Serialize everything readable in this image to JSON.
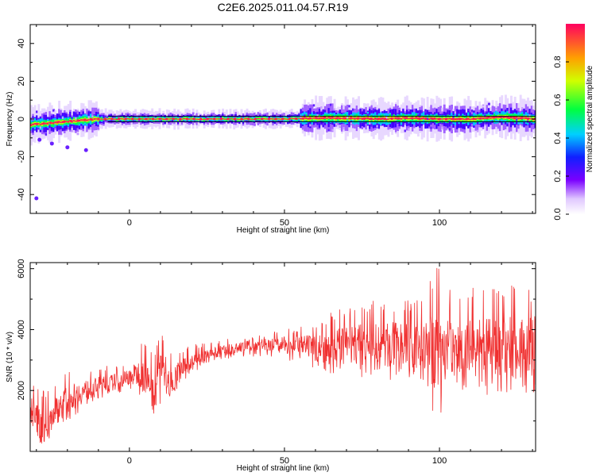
{
  "title": "C2E6.2025.011.04.57.R19",
  "colors": {
    "snr_line": "#f03030",
    "spectrum_dot": "#ff2050",
    "axis": "#000000"
  },
  "chart_data": [
    {
      "type": "heatmap",
      "xlabel": "Height of straight line (km)",
      "ylabel": "Frequency (Hz)",
      "xlim": [
        -32,
        131
      ],
      "ylim": [
        -50,
        50
      ],
      "xticks": [
        0,
        50,
        100
      ],
      "yticks": [
        -40,
        -20,
        0,
        20,
        40
      ],
      "grid": false,
      "colorbar": {
        "label": "Normalized spectral amplitude",
        "range": [
          0,
          1
        ],
        "ticks": [
          "0.0",
          "0.2",
          "0.4",
          "0.6",
          "0.8"
        ],
        "colormap": "rainbow"
      },
      "dominant_frequency": {
        "x": [
          -32,
          -25,
          -18,
          -10,
          0,
          10,
          20,
          30,
          40,
          50,
          60,
          70,
          80,
          90,
          100,
          110,
          120,
          131
        ],
        "y": [
          -3,
          -2,
          -1,
          0,
          0,
          0,
          0,
          0,
          0,
          0,
          0.5,
          0.5,
          0,
          0.5,
          0,
          0,
          1,
          0
        ]
      }
    },
    {
      "type": "line",
      "xlabel": "Height of straight line (km)",
      "ylabel": "SNR (10 * v/v)",
      "xlim": [
        -32,
        131
      ],
      "ylim": [
        0,
        6200
      ],
      "xticks": [
        0,
        50,
        100
      ],
      "yticks": [
        2000,
        4000,
        6000
      ],
      "grid": false,
      "series": [
        {
          "x": [
            -32,
            -28,
            -24,
            -20,
            -16,
            -12,
            -8,
            -4,
            0,
            4,
            8,
            10,
            12,
            16,
            20,
            25,
            30,
            35,
            40,
            45,
            50,
            55,
            60,
            65,
            70,
            75,
            80,
            85,
            90,
            95,
            98,
            100,
            102,
            105,
            110,
            115,
            120,
            125,
            131
          ],
          "values": [
            1400,
            700,
            1300,
            1700,
            1900,
            2100,
            2200,
            2300,
            2450,
            2600,
            1800,
            2900,
            2200,
            2600,
            2900,
            3100,
            3300,
            3400,
            3500,
            3500,
            3500,
            3450,
            3400,
            3400,
            3500,
            3500,
            3400,
            3500,
            3400,
            3400,
            3300,
            3600,
            3400,
            3300,
            3400,
            3400,
            3400,
            3400,
            3500
          ],
          "envelope_low": [
            400,
            200,
            600,
            1000,
            1300,
            1600,
            1800,
            1900,
            2000,
            1800,
            1100,
            1500,
            1700,
            2100,
            2500,
            2800,
            3000,
            3100,
            3100,
            3100,
            3000,
            2900,
            2700,
            2500,
            2500,
            2400,
            2300,
            2300,
            2200,
            2200,
            1200,
            1000,
            1800,
            2000,
            2000,
            1800,
            1900,
            1600,
            1700
          ],
          "envelope_high": [
            2200,
            2100,
            2300,
            2600,
            2700,
            2800,
            2800,
            2900,
            3000,
            3600,
            3300,
            4100,
            3300,
            3400,
            3500,
            3600,
            3700,
            3700,
            3800,
            3900,
            4000,
            4100,
            4300,
            4600,
            4800,
            5000,
            5200,
            5000,
            5000,
            5200,
            5800,
            6200,
            5500,
            5200,
            5400,
            5300,
            5500,
            5600,
            5500
          ]
        }
      ]
    }
  ]
}
